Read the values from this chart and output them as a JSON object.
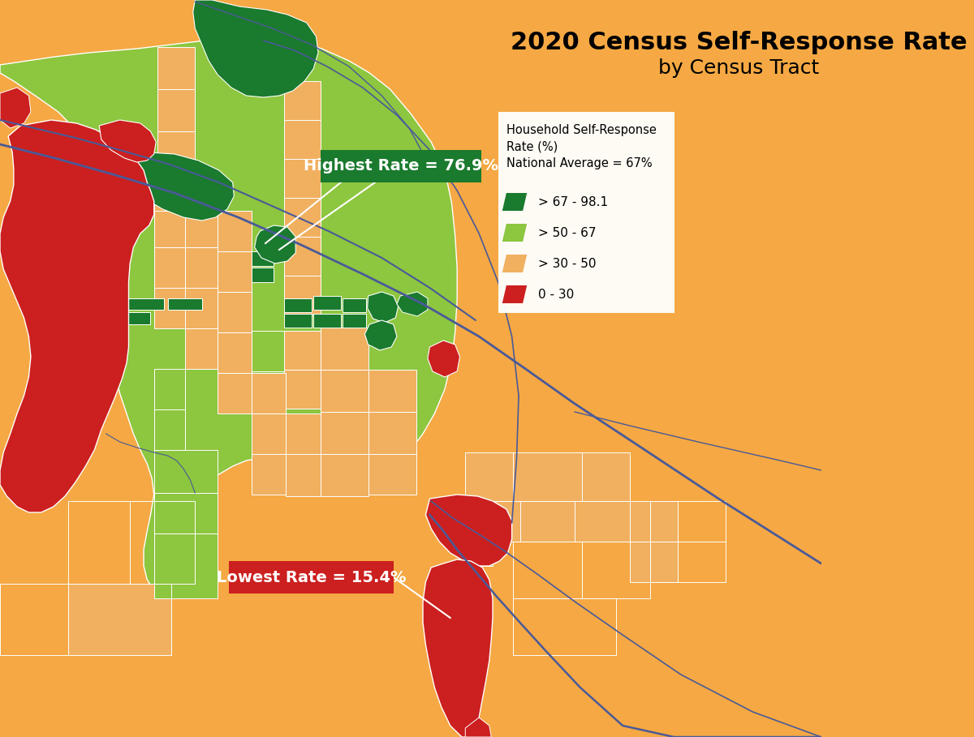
{
  "title_line1": "2020 Census Self-Response Rate",
  "title_line2": "by Census Tract",
  "title_fontsize": 22,
  "subtitle_fontsize": 18,
  "legend_title": "Household Self-Response\nRate (%)\nNational Average = 67%",
  "legend_items": [
    {
      "label": "> 67 - 98.1",
      "color": "#1a7a2e"
    },
    {
      "label": "> 50 - 67",
      "color": "#8dc63f"
    },
    {
      "label": "> 30 - 50",
      "color": "#f7b267"
    },
    {
      "label": "0 - 30",
      "color": "#cc1f1f"
    }
  ],
  "bg_color": "#f5a843",
  "dark_green": "#1a7a2e",
  "light_green": "#8dc63f",
  "orange": "#f5a843",
  "orange_tract": "#f0b060",
  "red": "#cc1f1f",
  "annotation_high_text": "Highest Rate = 76.9%",
  "annotation_low_text": "Lowest Rate = 15.4%",
  "annotation_high_bg": "#1a7a2e",
  "annotation_low_bg": "#cc1f1f",
  "road_color": "#4a5a99",
  "border_color": "#ffffff"
}
